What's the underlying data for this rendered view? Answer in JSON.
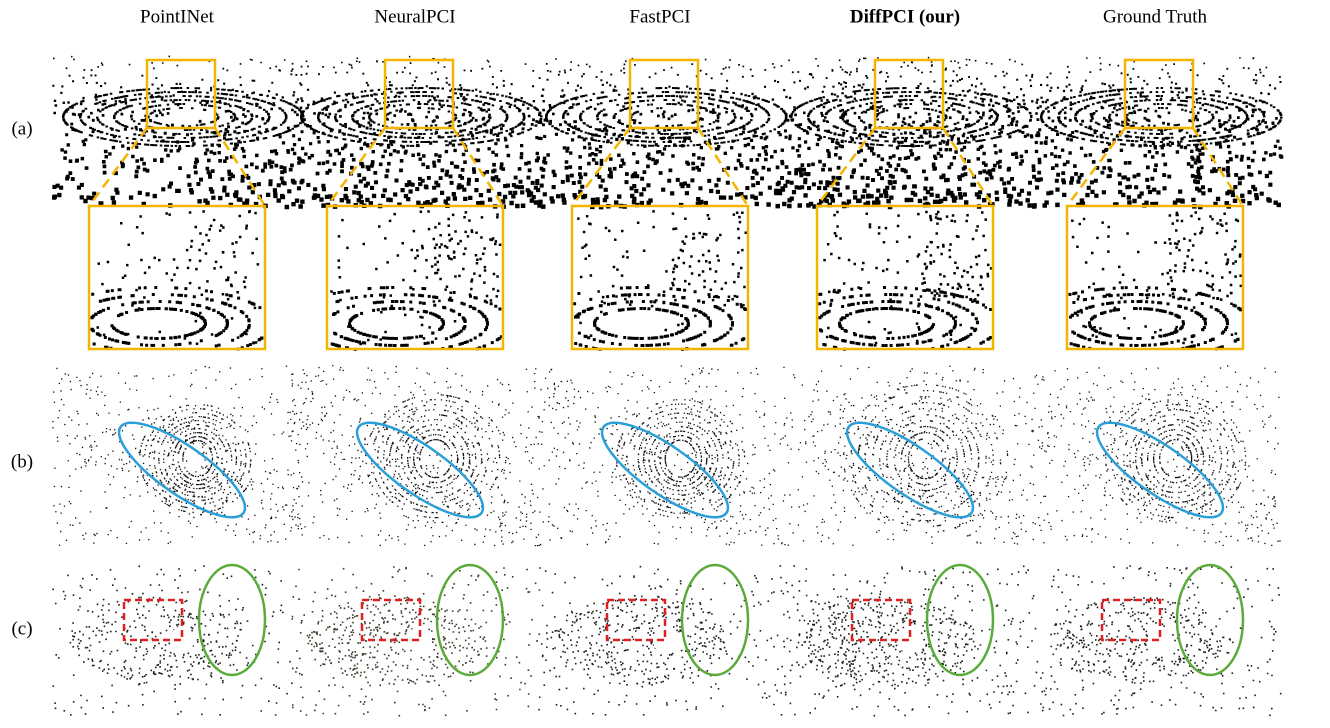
{
  "columns": [
    {
      "label": "PointINet"
    },
    {
      "label": "NeuralPCI"
    },
    {
      "label": "FastPCI"
    },
    {
      "label": "DiffPCI (our)",
      "bold": true
    },
    {
      "label": "Ground Truth"
    }
  ],
  "rows": [
    "(a)",
    "(b)",
    "(c)"
  ]
}
